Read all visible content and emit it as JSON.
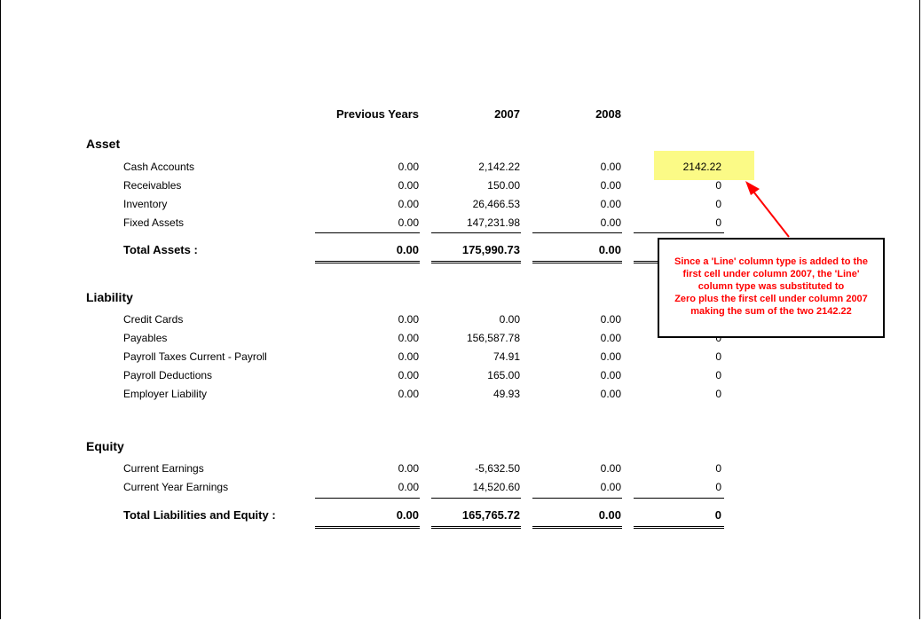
{
  "columns": [
    "Previous Years",
    "2007",
    "2008"
  ],
  "sections": {
    "asset": {
      "title": "Asset",
      "rows": [
        {
          "label": "Cash Accounts",
          "values": [
            "0.00",
            "2,142.22",
            "0.00",
            "2142.22"
          ]
        },
        {
          "label": "Receivables",
          "values": [
            "0.00",
            "150.00",
            "0.00",
            "0"
          ]
        },
        {
          "label": "Inventory",
          "values": [
            "0.00",
            "26,466.53",
            "0.00",
            "0"
          ]
        },
        {
          "label": "Fixed Assets",
          "values": [
            "0.00",
            "147,231.98",
            "0.00",
            "0"
          ]
        }
      ],
      "total": {
        "label": "Total Assets :",
        "values": [
          "0.00",
          "175,990.73",
          "0.00"
        ]
      }
    },
    "liability": {
      "title": "Liability",
      "rows": [
        {
          "label": "Credit Cards",
          "values": [
            "0.00",
            "0.00",
            "0.00",
            ""
          ]
        },
        {
          "label": "Payables",
          "values": [
            "0.00",
            "156,587.78",
            "0.00",
            "0"
          ]
        },
        {
          "label": "Payroll Taxes Current - Payroll",
          "values": [
            "0.00",
            "74.91",
            "0.00",
            "0"
          ]
        },
        {
          "label": "Payroll Deductions",
          "values": [
            "0.00",
            "165.00",
            "0.00",
            "0"
          ]
        },
        {
          "label": "Employer Liability",
          "values": [
            "0.00",
            "49.93",
            "0.00",
            "0"
          ]
        }
      ]
    },
    "equity": {
      "title": "Equity",
      "rows": [
        {
          "label": "Current Earnings",
          "values": [
            "0.00",
            "-5,632.50",
            "0.00",
            "0"
          ]
        },
        {
          "label": "Current Year Earnings",
          "values": [
            "0.00",
            "14,520.60",
            "0.00",
            "0"
          ]
        }
      ],
      "total": {
        "label": "Total Liabilities and Equity :",
        "values": [
          "0.00",
          "165,765.72",
          "0.00",
          "0"
        ]
      }
    }
  },
  "callout": {
    "lines": [
      "Since a 'Line' column type is added to the",
      "first cell under column 2007, the 'Line'",
      "column type was substituted to",
      "Zero plus the first cell under column 2007",
      "making the sum of the two 2142.22"
    ],
    "text_color": "#ff0000",
    "highlight_color": "#fbfa86"
  }
}
